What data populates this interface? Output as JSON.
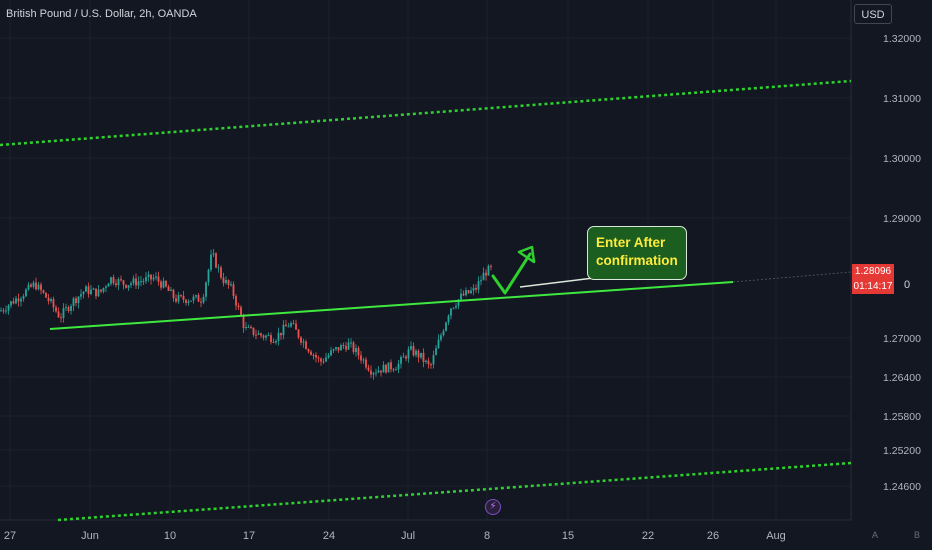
{
  "header": {
    "title": "British Pound / U.S. Dollar, 2h, OANDA"
  },
  "currency_button": "USD",
  "annotation": {
    "line1": "Enter After",
    "line2": "confirmation"
  },
  "price_tag": {
    "price": "1.28096",
    "countdown": "01:14:17"
  },
  "right_label": "0",
  "corner_buttons": {
    "auto": "A",
    "bottom": "B"
  },
  "events_icon": "lightning-icon",
  "colors": {
    "background": "#131722",
    "up": "#26a69a",
    "down": "#ef5350",
    "channel": "#2ed12e",
    "trendline": "#3ee83e",
    "price_tag": "#e53935"
  },
  "chart_data": {
    "type": "candlestick",
    "title": "British Pound / U.S. Dollar, 2h, OANDA",
    "y_ticks": [
      "1.32000",
      "1.31000",
      "1.30000",
      "1.29000",
      "1.27000",
      "1.26400",
      "1.25800",
      "1.25200",
      "1.24600"
    ],
    "x_ticks": [
      "27",
      "Jun",
      "10",
      "17",
      "24",
      "Jul",
      "8",
      "15",
      "22",
      "26",
      "Aug"
    ],
    "last_price": 1.28096,
    "price_path": [
      [
        0,
        1.2745
      ],
      [
        20,
        1.277
      ],
      [
        35,
        1.279
      ],
      [
        50,
        1.276
      ],
      [
        60,
        1.2735
      ],
      [
        72,
        1.276
      ],
      [
        85,
        1.278
      ],
      [
        100,
        1.2775
      ],
      [
        110,
        1.28
      ],
      [
        125,
        1.279
      ],
      [
        140,
        1.2795
      ],
      [
        155,
        1.28
      ],
      [
        165,
        1.2785
      ],
      [
        175,
        1.2765
      ],
      [
        190,
        1.2765
      ],
      [
        202,
        1.2765
      ],
      [
        212,
        1.284
      ],
      [
        222,
        1.28
      ],
      [
        232,
        1.278
      ],
      [
        245,
        1.2715
      ],
      [
        260,
        1.2705
      ],
      [
        275,
        1.27
      ],
      [
        290,
        1.2725
      ],
      [
        305,
        1.269
      ],
      [
        320,
        1.266
      ],
      [
        335,
        1.268
      ],
      [
        348,
        1.269
      ],
      [
        360,
        1.267
      ],
      [
        372,
        1.2645
      ],
      [
        385,
        1.265
      ],
      [
        398,
        1.2655
      ],
      [
        410,
        1.268
      ],
      [
        420,
        1.267
      ],
      [
        430,
        1.265
      ],
      [
        440,
        1.27
      ],
      [
        450,
        1.275
      ],
      [
        462,
        1.277
      ],
      [
        475,
        1.278
      ],
      [
        485,
        1.281
      ],
      [
        492,
        1.2815
      ]
    ],
    "annotations": {
      "trendline": "support",
      "channel": "dashed parallel channel",
      "projection": "up arrow",
      "callout": "Enter After confirmation"
    }
  }
}
